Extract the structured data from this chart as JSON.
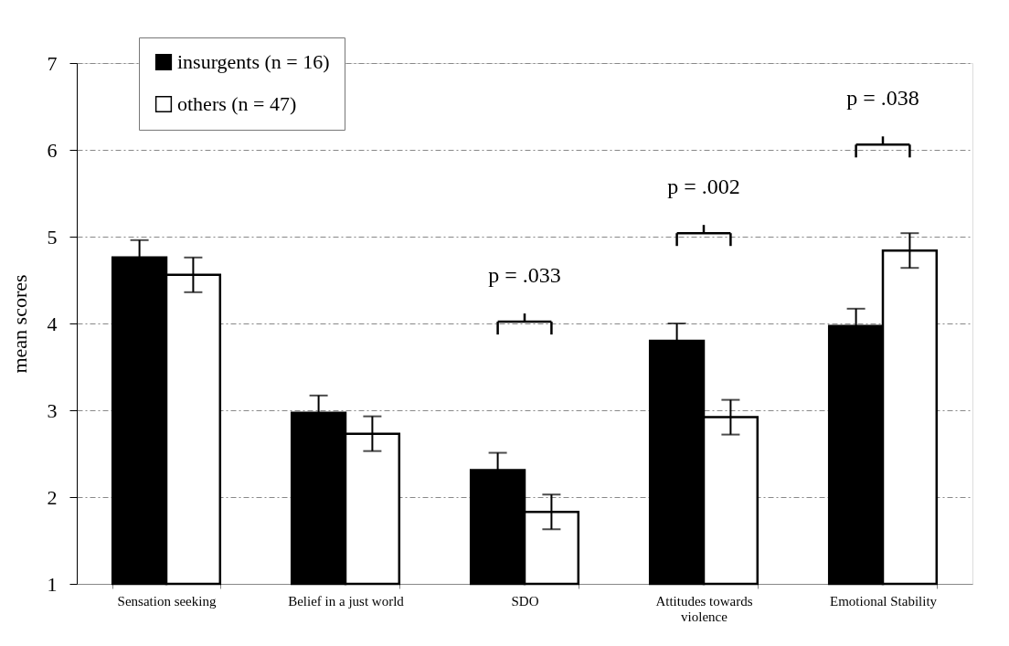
{
  "chart_data": {
    "type": "bar",
    "ylabel": "mean scores",
    "categories": [
      "Sensation seeking",
      "Belief in a just world",
      "SDO",
      "Attitudes towards violence",
      "Emotional Stability"
    ],
    "series": [
      {
        "name": "insurgents (n = 16)",
        "color": "#000000",
        "values": [
          4.76,
          2.97,
          2.31,
          3.8,
          3.97
        ],
        "errors": [
          0.2,
          0.2,
          0.2,
          0.2,
          0.2
        ]
      },
      {
        "name": "others (n = 47)",
        "color": "#ffffff",
        "values": [
          4.56,
          2.73,
          1.83,
          2.92,
          4.84
        ],
        "errors": [
          0.2,
          0.2,
          0.2,
          0.2,
          0.2
        ]
      }
    ],
    "ylim": [
      1,
      7
    ],
    "yticks": [
      1,
      2,
      3,
      4,
      5,
      6,
      7
    ],
    "grid": "y",
    "legend": "top left",
    "annotations": [
      "p = .033",
      "p = .002",
      "p = .038"
    ]
  }
}
